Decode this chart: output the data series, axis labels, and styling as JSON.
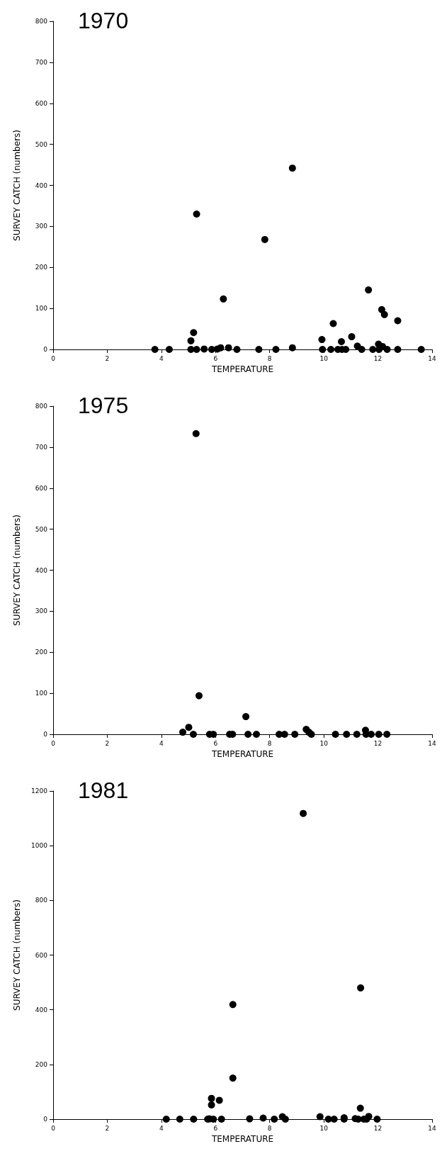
{
  "chart_data": [
    {
      "type": "scatter",
      "title": "1970",
      "xlabel": "TEMPERATURE",
      "ylabel": "SURVEY CATCH (numbers)",
      "xlim": [
        0,
        14
      ],
      "xticks": [
        0,
        2,
        4,
        6,
        8,
        10,
        12,
        14
      ],
      "ylim": [
        0,
        800
      ],
      "yticks": [
        0,
        100,
        200,
        300,
        400,
        500,
        600,
        700,
        800
      ],
      "grid": false,
      "marker": "circle",
      "series": [
        {
          "color": "#000000",
          "x": [
            3.76,
            4.29,
            5.09,
            5.09,
            5.19,
            5.3,
            5.3,
            5.58,
            5.86,
            6.07,
            6.19,
            6.29,
            6.48,
            6.79,
            7.6,
            7.82,
            8.23,
            8.84,
            8.84,
            9.93,
            9.95,
            10.26,
            10.35,
            10.52,
            10.65,
            10.67,
            10.81,
            11.03,
            11.24,
            11.4,
            11.65,
            11.81,
            12.02,
            12.04,
            12.14,
            12.24,
            12.17,
            12.34,
            12.73,
            12.73,
            13.6
          ],
          "values": [
            0,
            0,
            21,
            0,
            41,
            330,
            0,
            1,
            0,
            1,
            4,
            123,
            4,
            0,
            0,
            268,
            0,
            442,
            4,
            24,
            0,
            0,
            63,
            0,
            19,
            0,
            0,
            31,
            8,
            0,
            145,
            0,
            13,
            0,
            97,
            85,
            7,
            0,
            70,
            0,
            0
          ]
        }
      ]
    },
    {
      "type": "scatter",
      "title": "1975",
      "xlabel": "TEMPERATURE",
      "ylabel": "SURVEY CATCH (numbers)",
      "xlim": [
        0,
        14
      ],
      "xticks": [
        0,
        2,
        4,
        6,
        8,
        10,
        12,
        14
      ],
      "ylim": [
        0,
        800
      ],
      "yticks": [
        0,
        100,
        200,
        300,
        400,
        500,
        600,
        700,
        800
      ],
      "grid": false,
      "marker": "circle",
      "series": [
        {
          "color": "#000000",
          "x": [
            4.79,
            5.01,
            5.18,
            5.28,
            5.39,
            5.78,
            5.92,
            6.52,
            6.63,
            7.12,
            7.2,
            7.51,
            8.35,
            8.55,
            8.93,
            9.35,
            9.45,
            9.54,
            10.43,
            10.84,
            11.22,
            11.54,
            11.56,
            11.75,
            12.03,
            12.33
          ],
          "values": [
            5,
            17,
            0,
            733,
            94,
            0,
            0,
            0,
            0,
            43,
            0,
            0,
            0,
            0,
            0,
            12,
            5,
            0,
            0,
            0,
            0,
            10,
            0,
            0,
            0,
            0
          ]
        }
      ]
    },
    {
      "type": "scatter",
      "title": "1981",
      "xlabel": "TEMPERATURE",
      "ylabel": "SURVEY CATCH (numbers)",
      "xlim": [
        0,
        14
      ],
      "xticks": [
        0,
        2,
        4,
        6,
        8,
        10,
        12,
        14
      ],
      "ylim": [
        0,
        1200
      ],
      "yticks": [
        0,
        200,
        400,
        600,
        800,
        1000,
        1200
      ],
      "grid": false,
      "marker": "circle",
      "series": [
        {
          "color": "#000000",
          "x": [
            4.18,
            4.68,
            5.19,
            5.71,
            5.85,
            5.85,
            5.77,
            5.92,
            6.14,
            6.22,
            6.64,
            6.64,
            7.26,
            7.76,
            8.17,
            8.47,
            8.58,
            9.24,
            9.86,
            10.17,
            10.38,
            10.75,
            10.75,
            11.16,
            11.36,
            11.35,
            11.27,
            11.48,
            11.66,
            11.58,
            11.97
          ],
          "values": [
            0,
            0,
            0,
            0,
            76,
            52,
            1,
            0,
            69,
            0,
            419,
            150,
            1,
            4,
            0,
            9,
            0,
            1118,
            9,
            0,
            0,
            5,
            0,
            2,
            480,
            40,
            0,
            0,
            10,
            0,
            0
          ]
        }
      ]
    }
  ]
}
